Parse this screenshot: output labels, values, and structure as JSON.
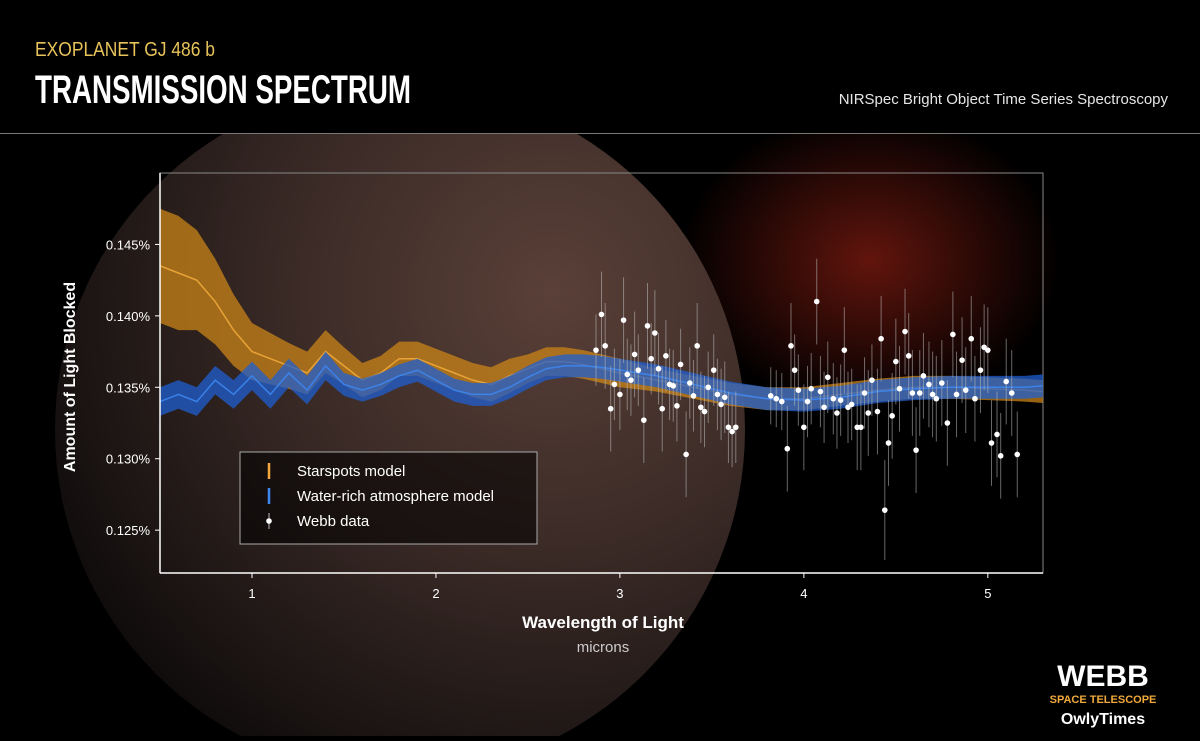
{
  "header": {
    "kicker": "EXOPLANET GJ 486 b",
    "title": "TRANSMISSION SPECTRUM",
    "subtitle": "NIRSpec Bright Object Time Series Spectroscopy"
  },
  "chart_data": {
    "type": "line",
    "x_label": "Wavelength of Light",
    "x_unit": "microns",
    "y_label": "Amount of Light Blocked",
    "xlim": [
      0.5,
      5.3
    ],
    "xticks": [
      1,
      2,
      3,
      4,
      5
    ],
    "ylim": [
      0.122,
      0.15
    ],
    "yticks": [
      {
        "value": 0.125,
        "label": "0.125%"
      },
      {
        "value": 0.13,
        "label": "0.130%"
      },
      {
        "value": 0.135,
        "label": "0.135%"
      },
      {
        "value": 0.14,
        "label": "0.140%"
      },
      {
        "value": 0.145,
        "label": "0.145%"
      }
    ],
    "legend": "lower-left",
    "series": [
      {
        "name": "Starspots model",
        "type": "line",
        "color": "#f0a93a",
        "band_color": "#c98418",
        "x": [
          0.5,
          0.6,
          0.7,
          0.8,
          0.9,
          1.0,
          1.1,
          1.2,
          1.3,
          1.4,
          1.5,
          1.6,
          1.7,
          1.8,
          1.9,
          2.0,
          2.1,
          2.2,
          2.3,
          2.4,
          2.5,
          2.6,
          2.7,
          2.8,
          2.9,
          3.0,
          3.2,
          3.4,
          3.6,
          3.8,
          4.0,
          4.2,
          4.4,
          4.6,
          4.8,
          5.0,
          5.2,
          5.3
        ],
        "values": [
          0.1435,
          0.143,
          0.1425,
          0.141,
          0.139,
          0.1375,
          0.137,
          0.1365,
          0.136,
          0.1375,
          0.1365,
          0.1355,
          0.136,
          0.137,
          0.137,
          0.1365,
          0.136,
          0.1355,
          0.1352,
          0.1358,
          0.1363,
          0.1368,
          0.1368,
          0.1366,
          0.1363,
          0.136,
          0.1355,
          0.135,
          0.1345,
          0.1342,
          0.1342,
          0.1345,
          0.1348,
          0.135,
          0.135,
          0.1349,
          0.1348,
          0.1347
        ],
        "spread": [
          0.004,
          0.004,
          0.0035,
          0.003,
          0.0025,
          0.002,
          0.0018,
          0.0016,
          0.0015,
          0.0015,
          0.0013,
          0.0012,
          0.0012,
          0.0012,
          0.0012,
          0.0012,
          0.0012,
          0.0012,
          0.0012,
          0.0012,
          0.001,
          0.001,
          0.001,
          0.001,
          0.001,
          0.001,
          0.0008,
          0.0008,
          0.0008,
          0.0008,
          0.0008,
          0.0008,
          0.0008,
          0.0008,
          0.0008,
          0.0008,
          0.0008,
          0.0008
        ]
      },
      {
        "name": "Water-rich atmosphere model",
        "type": "line",
        "color": "#3d86f0",
        "band_color": "#1f5fd0",
        "x": [
          0.5,
          0.6,
          0.7,
          0.8,
          0.9,
          1.0,
          1.1,
          1.2,
          1.3,
          1.4,
          1.5,
          1.6,
          1.7,
          1.8,
          1.9,
          2.0,
          2.1,
          2.2,
          2.3,
          2.4,
          2.5,
          2.6,
          2.7,
          2.8,
          2.9,
          3.0,
          3.2,
          3.4,
          3.6,
          3.8,
          4.0,
          4.2,
          4.4,
          4.6,
          4.8,
          5.0,
          5.2,
          5.3
        ],
        "values": [
          0.134,
          0.1345,
          0.134,
          0.1355,
          0.1345,
          0.1358,
          0.1345,
          0.136,
          0.1348,
          0.1365,
          0.1352,
          0.1348,
          0.1352,
          0.1358,
          0.1362,
          0.1355,
          0.1348,
          0.1345,
          0.1345,
          0.135,
          0.1357,
          0.1363,
          0.1365,
          0.1365,
          0.1364,
          0.1362,
          0.1358,
          0.1352,
          0.1346,
          0.1342,
          0.1341,
          0.1343,
          0.1347,
          0.1349,
          0.135,
          0.135,
          0.135,
          0.1351
        ],
        "spread": [
          0.001,
          0.001,
          0.001,
          0.001,
          0.001,
          0.001,
          0.001,
          0.001,
          0.001,
          0.001,
          0.0008,
          0.0008,
          0.0008,
          0.0008,
          0.0008,
          0.0008,
          0.0008,
          0.0008,
          0.0008,
          0.0008,
          0.0008,
          0.0008,
          0.0008,
          0.0008,
          0.0008,
          0.0008,
          0.0008,
          0.0008,
          0.0008,
          0.0008,
          0.0008,
          0.0008,
          0.0008,
          0.0008,
          0.0008,
          0.0008,
          0.0008,
          0.0008
        ]
      },
      {
        "name": "Webb data",
        "type": "scatter",
        "color": "#ffffff",
        "x": [
          2.87,
          2.9,
          2.92,
          2.95,
          2.97,
          3.0,
          3.02,
          3.04,
          3.06,
          3.08,
          3.1,
          3.13,
          3.15,
          3.17,
          3.19,
          3.21,
          3.23,
          3.25,
          3.27,
          3.29,
          3.31,
          3.33,
          3.36,
          3.38,
          3.4,
          3.42,
          3.44,
          3.46,
          3.48,
          3.51,
          3.53,
          3.55,
          3.57,
          3.59,
          3.61,
          3.63,
          3.82,
          3.85,
          3.88,
          3.91,
          3.93,
          3.95,
          3.97,
          4.0,
          4.02,
          4.04,
          4.07,
          4.09,
          4.11,
          4.13,
          4.16,
          4.18,
          4.2,
          4.22,
          4.24,
          4.26,
          4.29,
          4.31,
          4.33,
          4.35,
          4.37,
          4.4,
          4.42,
          4.44,
          4.46,
          4.48,
          4.5,
          4.52,
          4.55,
          4.57,
          4.59,
          4.61,
          4.63,
          4.65,
          4.68,
          4.7,
          4.72,
          4.75,
          4.78,
          4.81,
          4.83,
          4.86,
          4.88,
          4.91,
          4.93,
          4.96,
          4.98,
          5.0,
          5.02,
          5.05,
          5.07,
          5.1,
          5.13,
          5.16
        ],
        "values": [
          0.1376,
          0.1401,
          0.1379,
          0.1335,
          0.1352,
          0.1345,
          0.1397,
          0.1359,
          0.1355,
          0.1373,
          0.1362,
          0.1327,
          0.1393,
          0.137,
          0.1388,
          0.1363,
          0.1335,
          0.1372,
          0.1352,
          0.1351,
          0.1337,
          0.1366,
          0.1303,
          0.1353,
          0.1344,
          0.1379,
          0.1336,
          0.1333,
          0.135,
          0.1362,
          0.1345,
          0.1338,
          0.1343,
          0.1322,
          0.1319,
          0.1322,
          0.1344,
          0.1342,
          0.134,
          0.1307,
          0.1379,
          0.1362,
          0.1348,
          0.1322,
          0.134,
          0.1349,
          0.141,
          0.1347,
          0.1336,
          0.1357,
          0.1342,
          0.1332,
          0.1341,
          0.1376,
          0.1336,
          0.1338,
          0.1322,
          0.1322,
          0.1346,
          0.1332,
          0.1355,
          0.1333,
          0.1384,
          0.1264,
          0.1311,
          0.133,
          0.1368,
          0.1349,
          0.1389,
          0.1372,
          0.1346,
          0.1306,
          0.1346,
          0.1358,
          0.1352,
          0.1345,
          0.1342,
          0.1353,
          0.1325,
          0.1387,
          0.1345,
          0.1369,
          0.1348,
          0.1384,
          0.1342,
          0.1362,
          0.1378,
          0.1376,
          0.1311,
          0.1317,
          0.1302,
          0.1354,
          0.1346,
          0.1303
        ],
        "errors": [
          0.0025,
          0.003,
          0.003,
          0.003,
          0.0025,
          0.0025,
          0.003,
          0.0025,
          0.0025,
          0.003,
          0.0025,
          0.003,
          0.003,
          0.0025,
          0.003,
          0.0025,
          0.003,
          0.0025,
          0.0025,
          0.0025,
          0.0025,
          0.0025,
          0.003,
          0.0025,
          0.0025,
          0.003,
          0.0025,
          0.0025,
          0.0025,
          0.0025,
          0.0025,
          0.0025,
          0.0025,
          0.0025,
          0.0025,
          0.0025,
          0.002,
          0.002,
          0.002,
          0.003,
          0.003,
          0.0025,
          0.0025,
          0.003,
          0.0025,
          0.0025,
          0.003,
          0.0025,
          0.0025,
          0.0025,
          0.0025,
          0.0025,
          0.0025,
          0.003,
          0.0025,
          0.0025,
          0.003,
          0.003,
          0.0025,
          0.003,
          0.0025,
          0.003,
          0.003,
          0.0035,
          0.003,
          0.003,
          0.003,
          0.003,
          0.003,
          0.003,
          0.003,
          0.003,
          0.003,
          0.003,
          0.003,
          0.003,
          0.003,
          0.003,
          0.003,
          0.003,
          0.003,
          0.003,
          0.003,
          0.003,
          0.003,
          0.003,
          0.003,
          0.003,
          0.003,
          0.003,
          0.003,
          0.003,
          0.003,
          0.003
        ]
      }
    ]
  },
  "logo": {
    "name": "WEBB",
    "tagline": "SPACE TELESCOPE",
    "credit": "OwlyTimes"
  }
}
